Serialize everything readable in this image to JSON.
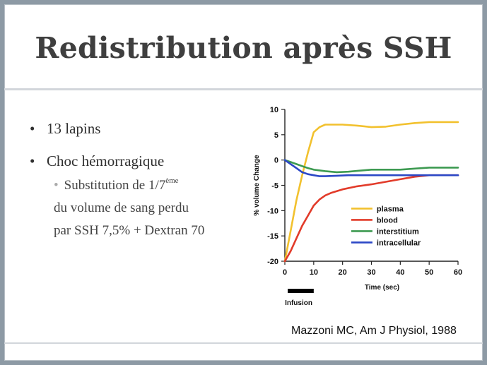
{
  "slide": {
    "title": "Redistribution après SSH",
    "bullet1": "13 lapins",
    "bullet2": "Choc hémorragique",
    "sub_bullet_prefix": "Substitution de 1/7",
    "sub_bullet_sup": "ème",
    "sub_line2": "du volume de sang perdu",
    "sub_line3": "par SSH 7,5% + Dextran 70",
    "citation": "Mazzoni MC, Am J Physiol, 1988"
  },
  "chart_data": {
    "type": "line",
    "ylabel": "% volume Change",
    "xlabel": "Time (sec)",
    "xlim": [
      0,
      60
    ],
    "ylim": [
      -20,
      10
    ],
    "x_ticks": [
      0,
      10,
      20,
      30,
      40,
      50,
      60
    ],
    "y_ticks": [
      10,
      5,
      0,
      -5,
      -10,
      -15,
      -20
    ],
    "grid": false,
    "legend_position": "center-right",
    "annotation": {
      "label": "Infusion",
      "x_start": 1,
      "x_end": 10
    },
    "series": [
      {
        "name": "plasma",
        "color": "#f2c12e",
        "x": [
          0,
          2,
          4,
          6,
          8,
          10,
          12,
          14,
          16,
          20,
          25,
          30,
          35,
          40,
          45,
          50,
          55,
          60
        ],
        "y": [
          -20,
          -14,
          -8,
          -3,
          1.5,
          5.5,
          6.5,
          7,
          7,
          7,
          6.8,
          6.5,
          6.6,
          7,
          7.3,
          7.5,
          7.5,
          7.5
        ]
      },
      {
        "name": "blood",
        "color": "#e23b2a",
        "x": [
          0,
          2,
          4,
          6,
          8,
          10,
          12,
          14,
          16,
          20,
          25,
          30,
          35,
          40,
          45,
          50,
          55,
          60
        ],
        "y": [
          -20,
          -18,
          -15.5,
          -13,
          -11,
          -9,
          -7.8,
          -7,
          -6.5,
          -5.8,
          -5.2,
          -4.8,
          -4.3,
          -3.8,
          -3.3,
          -3,
          -3,
          -3
        ]
      },
      {
        "name": "interstitium",
        "color": "#3d9a51",
        "x": [
          0,
          2,
          4,
          6,
          8,
          10,
          14,
          18,
          22,
          26,
          30,
          35,
          40,
          45,
          50,
          55,
          60
        ],
        "y": [
          0,
          -0.4,
          -0.8,
          -1.2,
          -1.6,
          -1.9,
          -2.2,
          -2.4,
          -2.3,
          -2.1,
          -1.9,
          -1.9,
          -1.9,
          -1.7,
          -1.5,
          -1.5,
          -1.5
        ]
      },
      {
        "name": "intracellular",
        "color": "#2b47c6",
        "x": [
          0,
          2,
          4,
          6,
          8,
          10,
          12,
          14,
          18,
          22,
          30,
          40,
          50,
          60
        ],
        "y": [
          0,
          -0.8,
          -1.6,
          -2.4,
          -2.8,
          -3,
          -3.2,
          -3.2,
          -3.1,
          -3,
          -3,
          -3,
          -3,
          -3
        ]
      }
    ]
  }
}
